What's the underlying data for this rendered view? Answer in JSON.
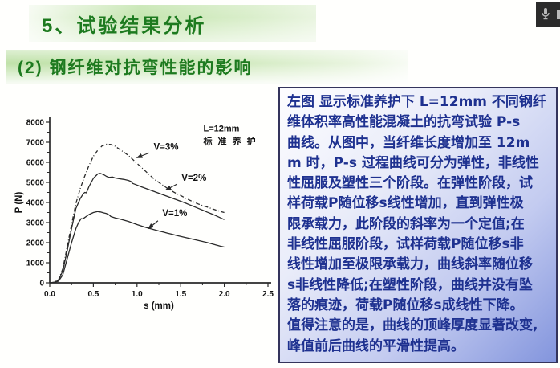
{
  "slide": {
    "title1": "5、试验结果分析",
    "title2": "(2) 钢纤维对抗弯性能的影响"
  },
  "text_panel": {
    "content": "左图 显示标准养护下 L=12mm 不同钢纤\n维体积率高性能混凝土的抗弯试验 P-s\n曲线。从图中，当纤维长度增加至 12m\nm 时，P-s 过程曲线可分为弹性，非线性\n性屈服及塑性三个阶段。在弹性阶段，试\n样荷载P随位移s线性增加，直到弹性极\n限承载力，此阶段的斜率为一个定值;在\n非线性屈服阶段，试样荷载P随位移s非\n线性增加至极限承载力，曲线斜率随位移\ns非线性降低;在塑性阶段，曲线并没有坠\n落的痕迹，荷载P随位移s成线性下降。\n值得注意的是，曲线的顶峰厚度显著改变,\n峰值前后曲线的平滑性提高。",
    "text_color": "#1e3190"
  },
  "recorder": {
    "icons": [
      "microphone-icon",
      "screen-icon-partial"
    ],
    "background": "#2b2b2b"
  },
  "colors": {
    "banner_text": "#1d7a1f",
    "banner_green": "#c5e5af",
    "panel_blue": "#8395dd",
    "curve_ink": "#2a2a2a"
  },
  "chart_data": {
    "type": "line",
    "title": "",
    "xlabel": "s (mm)",
    "ylabel": "P (N)",
    "xlim": [
      0,
      2.5
    ],
    "ylim": [
      0,
      8000
    ],
    "x_ticks": [
      0.0,
      0.5,
      1.0,
      1.5,
      2.0,
      2.5
    ],
    "y_ticks": [
      0,
      1000,
      2000,
      3000,
      4000,
      5000,
      6000,
      7000,
      8000
    ],
    "x_minor_ticks": [
      0.25,
      0.75,
      1.25,
      1.75,
      2.25
    ],
    "y_minor_ticks": [
      500,
      1500,
      2500,
      3500,
      4500,
      5500,
      6500,
      7500
    ],
    "grid": false,
    "annotation": [
      "L=12mm",
      "标 准 养 护"
    ],
    "annotation_pos": [
      1.76,
      7550
    ],
    "series": [
      {
        "name": "V=3%",
        "style": "dashdot",
        "label_pos": [
          1.19,
          6620
        ],
        "arrow_from": [
          1.14,
          6470
        ],
        "arrow_to": [
          1.0,
          6230
        ],
        "points": [
          [
            0,
            0
          ],
          [
            0.05,
            30
          ],
          [
            0.1,
            150
          ],
          [
            0.15,
            700
          ],
          [
            0.2,
            1800
          ],
          [
            0.25,
            2900
          ],
          [
            0.3,
            3950
          ],
          [
            0.35,
            4700
          ],
          [
            0.4,
            5300
          ],
          [
            0.45,
            5850
          ],
          [
            0.5,
            6300
          ],
          [
            0.55,
            6600
          ],
          [
            0.6,
            6820
          ],
          [
            0.65,
            6900
          ],
          [
            0.7,
            6890
          ],
          [
            0.75,
            6800
          ],
          [
            0.8,
            6650
          ],
          [
            0.85,
            6500
          ],
          [
            0.9,
            6350
          ],
          [
            0.95,
            6150
          ],
          [
            1.0,
            5950
          ],
          [
            1.05,
            5750
          ],
          [
            1.1,
            5550
          ],
          [
            1.15,
            5350
          ],
          [
            1.2,
            5150
          ],
          [
            1.25,
            5000
          ],
          [
            1.3,
            4850
          ],
          [
            1.35,
            4700
          ],
          [
            1.4,
            4570
          ],
          [
            1.45,
            4450
          ],
          [
            1.5,
            4350
          ],
          [
            1.55,
            4230
          ],
          [
            1.6,
            4120
          ],
          [
            1.65,
            4020
          ],
          [
            1.7,
            3930
          ],
          [
            1.75,
            3850
          ],
          [
            1.8,
            3780
          ],
          [
            1.85,
            3700
          ],
          [
            1.9,
            3630
          ],
          [
            1.95,
            3560
          ],
          [
            2.0,
            3500
          ]
        ]
      },
      {
        "name": "V=2%",
        "style": "solid",
        "label_pos": [
          1.51,
          5080
        ],
        "arrow_from": [
          1.46,
          4920
        ],
        "arrow_to": [
          1.33,
          4620
        ],
        "points": [
          [
            0,
            0
          ],
          [
            0.05,
            30
          ],
          [
            0.1,
            120
          ],
          [
            0.15,
            600
          ],
          [
            0.2,
            1600
          ],
          [
            0.25,
            2700
          ],
          [
            0.3,
            3700
          ],
          [
            0.35,
            4200
          ],
          [
            0.38,
            4400
          ],
          [
            0.4,
            4500
          ],
          [
            0.42,
            4480
          ],
          [
            0.45,
            4800
          ],
          [
            0.5,
            5200
          ],
          [
            0.55,
            5420
          ],
          [
            0.58,
            5450
          ],
          [
            0.62,
            5380
          ],
          [
            0.65,
            5300
          ],
          [
            0.68,
            5250
          ],
          [
            0.72,
            5270
          ],
          [
            0.75,
            5220
          ],
          [
            0.8,
            5180
          ],
          [
            0.85,
            5150
          ],
          [
            0.9,
            5100
          ],
          [
            0.93,
            5050
          ],
          [
            0.95,
            4950
          ],
          [
            1.0,
            4870
          ],
          [
            1.05,
            4780
          ],
          [
            1.1,
            4700
          ],
          [
            1.15,
            4620
          ],
          [
            1.2,
            4540
          ],
          [
            1.25,
            4460
          ],
          [
            1.3,
            4380
          ],
          [
            1.35,
            4300
          ],
          [
            1.4,
            4220
          ],
          [
            1.45,
            4140
          ],
          [
            1.5,
            4060
          ],
          [
            1.55,
            3980
          ],
          [
            1.6,
            3890
          ],
          [
            1.65,
            3800
          ],
          [
            1.7,
            3710
          ],
          [
            1.75,
            3620
          ],
          [
            1.8,
            3530
          ],
          [
            1.85,
            3440
          ],
          [
            1.9,
            3350
          ],
          [
            1.95,
            3250
          ],
          [
            2.0,
            3150
          ]
        ]
      },
      {
        "name": "V=1%",
        "style": "solid",
        "label_pos": [
          1.29,
          3330
        ],
        "arrow_from": [
          1.24,
          3090
        ],
        "arrow_to": [
          1.13,
          2700
        ],
        "points": [
          [
            0,
            0
          ],
          [
            0.05,
            20
          ],
          [
            0.1,
            80
          ],
          [
            0.15,
            400
          ],
          [
            0.2,
            1200
          ],
          [
            0.25,
            2000
          ],
          [
            0.3,
            2700
          ],
          [
            0.33,
            3000
          ],
          [
            0.36,
            3200
          ],
          [
            0.38,
            3180
          ],
          [
            0.4,
            3250
          ],
          [
            0.45,
            3400
          ],
          [
            0.5,
            3500
          ],
          [
            0.55,
            3550
          ],
          [
            0.58,
            3530
          ],
          [
            0.62,
            3480
          ],
          [
            0.65,
            3450
          ],
          [
            0.68,
            3380
          ],
          [
            0.7,
            3300
          ],
          [
            0.75,
            3230
          ],
          [
            0.8,
            3180
          ],
          [
            0.85,
            3120
          ],
          [
            0.9,
            3060
          ],
          [
            0.95,
            2980
          ],
          [
            1.0,
            2900
          ],
          [
            1.05,
            2830
          ],
          [
            1.1,
            2760
          ],
          [
            1.15,
            2700
          ],
          [
            1.2,
            2640
          ],
          [
            1.25,
            2580
          ],
          [
            1.3,
            2530
          ],
          [
            1.35,
            2470
          ],
          [
            1.4,
            2420
          ],
          [
            1.45,
            2360
          ],
          [
            1.5,
            2310
          ],
          [
            1.55,
            2260
          ],
          [
            1.6,
            2210
          ],
          [
            1.65,
            2160
          ],
          [
            1.7,
            2110
          ],
          [
            1.75,
            2060
          ],
          [
            1.8,
            2010
          ],
          [
            1.85,
            1950
          ],
          [
            1.9,
            1890
          ],
          [
            1.95,
            1830
          ],
          [
            2.0,
            1780
          ]
        ]
      }
    ]
  }
}
